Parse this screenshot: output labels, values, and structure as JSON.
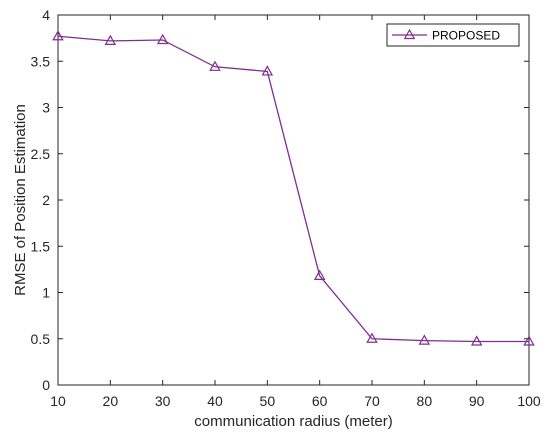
{
  "chart_data": {
    "type": "line",
    "title": "",
    "xlabel": "communication radius (meter)",
    "ylabel": "RMSE of Position Estimation",
    "xlim": [
      10,
      100
    ],
    "ylim": [
      0,
      4
    ],
    "xticks": [
      10,
      20,
      30,
      40,
      50,
      60,
      70,
      80,
      90,
      100
    ],
    "yticks": [
      0,
      0.5,
      1,
      1.5,
      2,
      2.5,
      3,
      3.5,
      4
    ],
    "ytick_labels": [
      "0",
      "0.5",
      "1",
      "1.5",
      "2",
      "2.5",
      "3",
      "3.5",
      "4"
    ],
    "grid": false,
    "legend_position": "top-right",
    "x": [
      10,
      20,
      30,
      40,
      50,
      60,
      70,
      80,
      90,
      100
    ],
    "series": [
      {
        "name": "PROPOSED",
        "color": "#7E2F8E",
        "marker": "triangle",
        "values": [
          3.77,
          3.72,
          3.73,
          3.44,
          3.39,
          1.18,
          0.5,
          0.48,
          0.47,
          0.47
        ]
      }
    ]
  }
}
